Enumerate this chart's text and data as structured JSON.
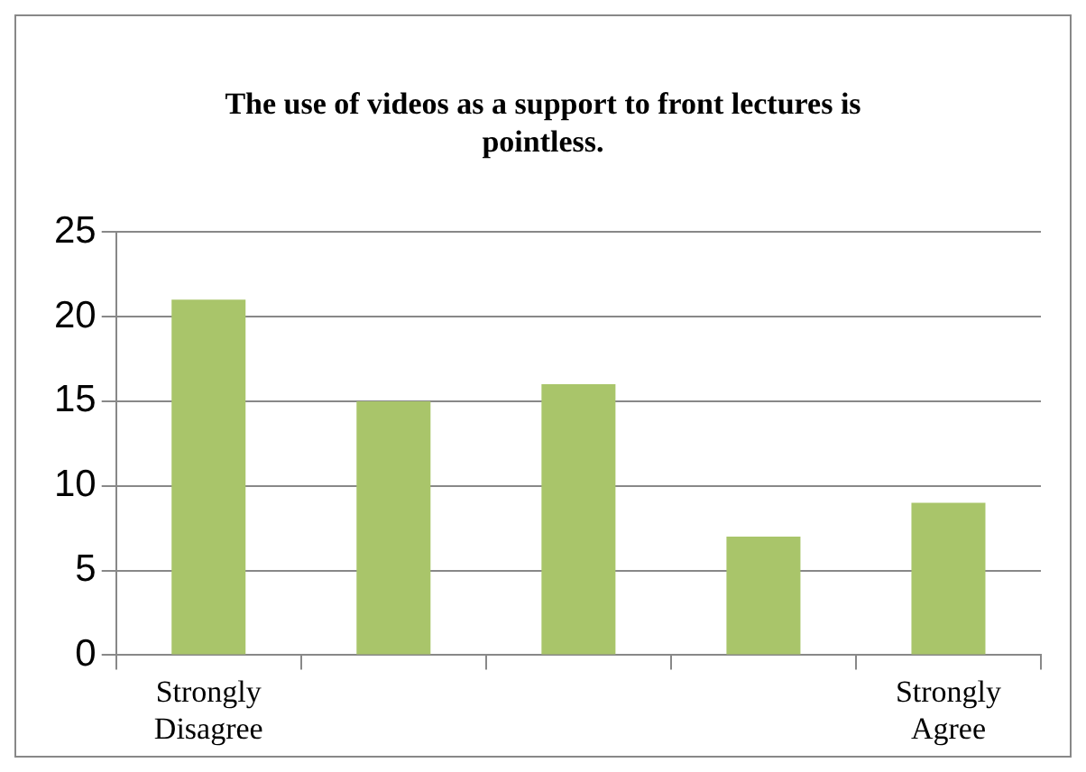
{
  "chart_data": {
    "type": "bar",
    "title": "The use of videos as a support to front lectures is pointless.",
    "categories": [
      "Strongly Disagree",
      null,
      null,
      null,
      "Strongly Agree"
    ],
    "values": [
      21,
      15,
      16,
      7,
      9
    ],
    "color": "#a9c56a",
    "ylim": [
      0,
      25
    ],
    "yticks": [
      0,
      5,
      10,
      15,
      20,
      25
    ],
    "grid": "y",
    "legend": false
  }
}
